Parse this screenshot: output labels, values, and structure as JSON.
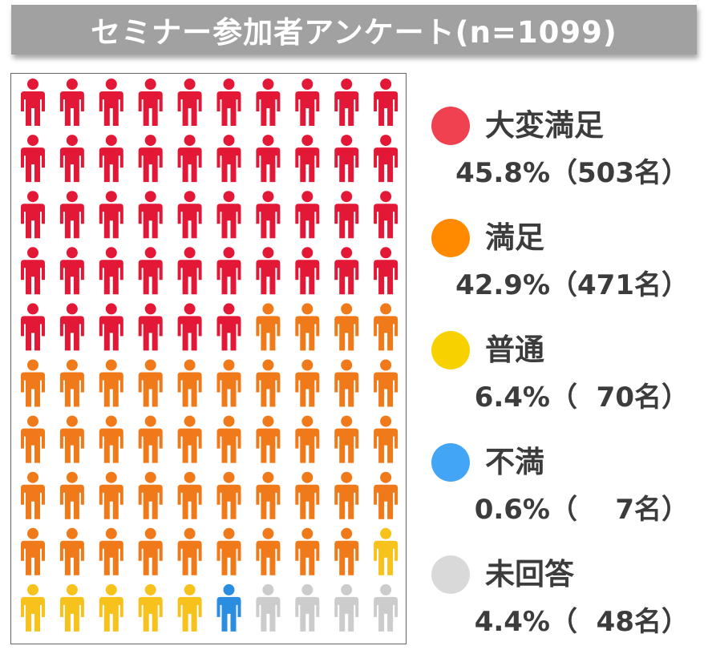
{
  "header": {
    "title": "セミナー参加者アンケート(n=1099)"
  },
  "chart_data": {
    "type": "pictograph",
    "title": "セミナー参加者アンケート(n=1099)",
    "total": 1099,
    "icon": "person-icon",
    "grid": {
      "columns": 10,
      "rows": 10
    },
    "legend_position": "right",
    "categories": [
      {
        "name": "大変満足",
        "percent": 45.8,
        "count": 503,
        "icons": 46,
        "color": "#f04150",
        "icon_color": "#e31837",
        "stat_label": "45.8%（503名）"
      },
      {
        "name": "満足",
        "percent": 42.9,
        "count": 471,
        "icons": 43,
        "color": "#ff8a00",
        "icon_color": "#f07a1a",
        "stat_label": "42.9%（471名）"
      },
      {
        "name": "普通",
        "percent": 6.4,
        "count": 70,
        "icons": 6,
        "color": "#f7d200",
        "icon_color": "#f7c21c",
        "stat_label": "6.4%（  70名）"
      },
      {
        "name": "不満",
        "percent": 0.6,
        "count": 7,
        "icons": 1,
        "color": "#42a5f5",
        "icon_color": "#2a8de0",
        "stat_label": "0.6%（    7名）"
      },
      {
        "name": "未回答",
        "percent": 4.4,
        "count": 48,
        "icons": 4,
        "color": "#d9d9d9",
        "icon_color": "#cccccc",
        "stat_label": "4.4%（  48名）"
      }
    ]
  }
}
